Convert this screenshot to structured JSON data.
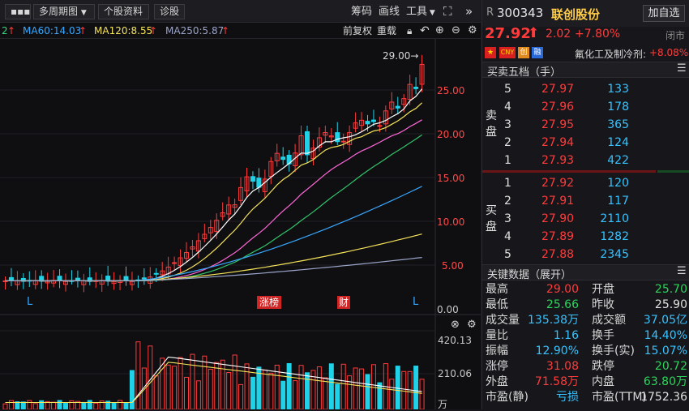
{
  "toolbar": {
    "more_label": "▪▪▪",
    "period_label": "多周期图",
    "profile_label": "个股资料",
    "diagnose_label": "诊股",
    "chip_label": "筹码",
    "draw_label": "画线",
    "tools_label": "工具",
    "fuquan_label": "前复权",
    "reset_label": "重载"
  },
  "ma_legend": {
    "ma_prev_tail": "2",
    "ma60": "MA60:14.03",
    "ma120": "MA120:8.55",
    "ma250": "MA250:5.87",
    "ma60_color": "#38a8ff",
    "ma120_color": "#f5e35a",
    "ma250_color": "#9aa4c8"
  },
  "chart_data": {
    "type": "candlestick",
    "y_axis_ticks": [
      "25.00",
      "20.00",
      "15.00",
      "10.00",
      "5.00",
      "0.00"
    ],
    "high_annotation": "29.00→",
    "markers": [
      "L",
      "涨榜",
      "财",
      "L"
    ],
    "volume_ticks": [
      "420.13",
      "210.06",
      "万"
    ],
    "ylim": [
      0,
      29
    ]
  },
  "quote": {
    "market_prefix": "R",
    "code": "300343",
    "name": "联创股份",
    "add_watch_label": "加自选",
    "price": "27.92",
    "change": "2.02",
    "change_pct": "+7.80%",
    "status": "闭市",
    "sector_name": "氟化工及制冷剂:",
    "sector_pct": "+8.08%"
  },
  "orderbook": {
    "title": "买卖五档（手）",
    "sell_label": "卖盘",
    "buy_label": "买盘",
    "asks": [
      {
        "level": "5",
        "price": "27.97",
        "vol": "133"
      },
      {
        "level": "4",
        "price": "27.96",
        "vol": "178"
      },
      {
        "level": "3",
        "price": "27.95",
        "vol": "365"
      },
      {
        "level": "2",
        "price": "27.94",
        "vol": "124"
      },
      {
        "level": "1",
        "price": "27.93",
        "vol": "422"
      }
    ],
    "bids": [
      {
        "level": "1",
        "price": "27.92",
        "vol": "120"
      },
      {
        "level": "2",
        "price": "27.91",
        "vol": "117"
      },
      {
        "level": "3",
        "price": "27.90",
        "vol": "2110"
      },
      {
        "level": "4",
        "price": "27.89",
        "vol": "1282"
      },
      {
        "level": "5",
        "price": "27.88",
        "vol": "2345"
      }
    ]
  },
  "key_data": {
    "title": "关键数据（展开）",
    "rows": [
      {
        "l1": "最高",
        "v1": "29.00",
        "l2": "开盘",
        "v2": "25.70"
      },
      {
        "l1": "最低",
        "v1": "25.66",
        "l2": "昨收",
        "v2": "25.90"
      },
      {
        "l1": "成交量",
        "v1": "135.38万",
        "l2": "成交额",
        "v2": "37.05亿"
      },
      {
        "l1": "量比",
        "v1": "1.16",
        "l2": "换手",
        "v2": "14.40%"
      },
      {
        "l1": "振幅",
        "v1": "12.90%",
        "l2": "换手(实)",
        "v2": "15.07%"
      },
      {
        "l1": "涨停",
        "v1": "31.08",
        "l2": "跌停",
        "v2": "20.72"
      },
      {
        "l1": "外盘",
        "v1": "71.58万",
        "l2": "内盘",
        "v2": "63.80万"
      },
      {
        "l1": "市盈(静)",
        "v1": "亏损",
        "l2": "市盈(TTM)",
        "v2": "1752.36"
      }
    ]
  }
}
